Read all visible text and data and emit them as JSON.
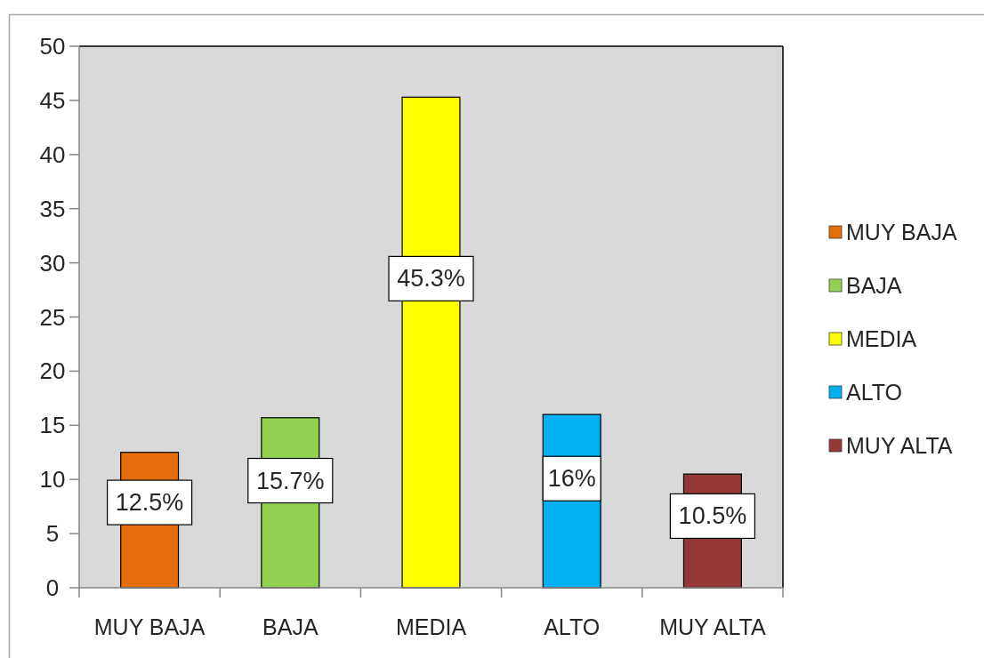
{
  "chart_data": {
    "type": "bar",
    "categories": [
      "MUY BAJA",
      "BAJA",
      "MEDIA",
      "ALTO",
      "MUY ALTA"
    ],
    "series": [
      {
        "name": "MUY BAJA",
        "color": "#e46c0a",
        "values": [
          12.5,
          null,
          null,
          null,
          null
        ],
        "value_labels": [
          "12.5%",
          null,
          null,
          null,
          null
        ]
      },
      {
        "name": "BAJA",
        "color": "#92d050",
        "values": [
          null,
          15.7,
          null,
          null,
          null
        ],
        "value_labels": [
          null,
          "15.7%",
          null,
          null,
          null
        ]
      },
      {
        "name": "MEDIA",
        "color": "#ffff00",
        "values": [
          null,
          null,
          45.3,
          null,
          null
        ],
        "value_labels": [
          null,
          null,
          "45.3%",
          null,
          null
        ]
      },
      {
        "name": "ALTO",
        "color": "#00b0f0",
        "values": [
          null,
          null,
          null,
          16,
          null
        ],
        "value_labels": [
          null,
          null,
          null,
          "16%",
          null
        ]
      },
      {
        "name": "MUY ALTA",
        "color": "#953735",
        "values": [
          null,
          null,
          null,
          null,
          10.5
        ],
        "value_labels": [
          null,
          null,
          null,
          null,
          "10.5%"
        ]
      }
    ],
    "ylim": [
      0,
      50
    ],
    "yticks": [
      0,
      5,
      10,
      15,
      20,
      25,
      30,
      35,
      40,
      45,
      50
    ],
    "legend": "right"
  }
}
